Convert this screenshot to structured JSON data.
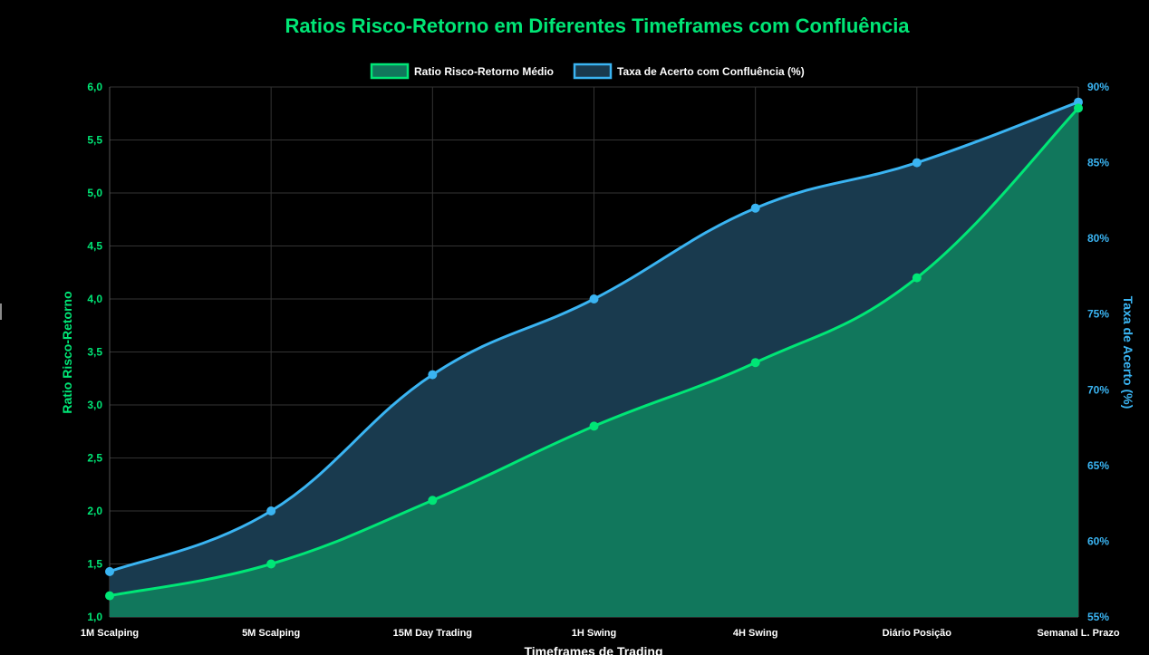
{
  "chart_data": {
    "type": "area",
    "title": "Ratios Risco-Retorno em Diferentes Timeframes com Confluência",
    "xlabel": "Timeframes de Trading",
    "ylabel": "Ratio Risco-Retorno",
    "y2label": "Taxa de Acerto (%)",
    "categories": [
      "1M Scalping",
      "5M Scalping",
      "15M Day Trading",
      "1H Swing",
      "4H Swing",
      "Diário Posição",
      "Semanal L. Prazo"
    ],
    "ylim": [
      1.0,
      6.0
    ],
    "y_ticks": [
      "1,0",
      "1,5",
      "2,0",
      "2,5",
      "3,0",
      "3,5",
      "4,0",
      "4,5",
      "5,0",
      "5,5",
      "6,0"
    ],
    "y2lim": [
      55,
      90
    ],
    "y2_ticks": [
      "55%",
      "60%",
      "65%",
      "70%",
      "75%",
      "80%",
      "85%",
      "90%"
    ],
    "grid": true,
    "legend_position": "top",
    "series": [
      {
        "name": "Ratio Risco-Retorno Médio",
        "axis": "left",
        "values": [
          1.2,
          1.5,
          2.1,
          2.8,
          3.4,
          4.2,
          5.8
        ],
        "line_color": "#00e676",
        "fill_color": "#11775c"
      },
      {
        "name": "Taxa de Acerto com Confluência (%)",
        "axis": "right",
        "values": [
          58,
          62,
          71,
          76,
          82,
          85,
          89
        ],
        "line_color": "#3ab4f2",
        "fill_color": "#193a4e"
      }
    ],
    "colors": {
      "background": "#000000",
      "title": "#00e676",
      "left_axis": "#00e676",
      "right_axis": "#3ab4f2",
      "x_axis": "#ffffff",
      "grid": "#333333",
      "legend_text": "#ffffff"
    }
  }
}
